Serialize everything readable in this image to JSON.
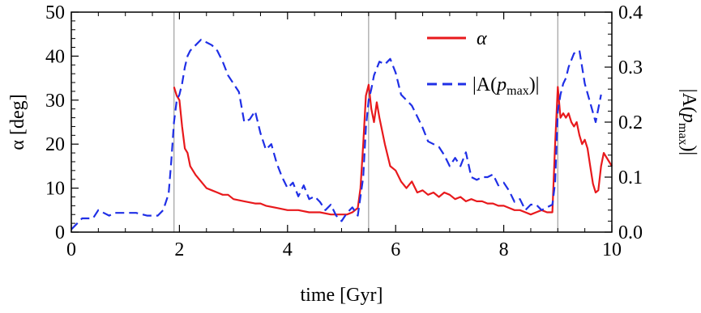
{
  "chart_data": {
    "type": "line",
    "xlabel": "time [Gyr]",
    "ylabel_left": "α [deg]",
    "ylabel_right": "|A(p_max)|",
    "xlim": [
      0,
      10
    ],
    "ylim_left": [
      0,
      50
    ],
    "ylim_right": [
      0,
      0.4
    ],
    "x_ticks": [
      "0",
      "2",
      "4",
      "6",
      "8",
      "10"
    ],
    "y_left_ticks": [
      "0",
      "10",
      "20",
      "30",
      "40",
      "50"
    ],
    "y_right_ticks": [
      "0.0",
      "0.1",
      "0.2",
      "0.3",
      "0.4"
    ],
    "vertical_lines": [
      1.9,
      5.5,
      9.0
    ],
    "grid": false,
    "legend_placement": "top-right",
    "legend": {
      "alpha_label": "α",
      "amp_label_prefix": "|A(",
      "amp_label_var": "p",
      "amp_label_sub": "max",
      "amp_label_suffix": ")|"
    },
    "right_axis_title": {
      "prefix": "|A(",
      "var": "p",
      "sub": "max",
      "suffix": ")|"
    },
    "colors": {
      "alpha": "#e8191c",
      "amp": "#1f2fe6",
      "vline": "#a0a0a0"
    },
    "series": [
      {
        "name": "α",
        "axis": "left",
        "style": "solid",
        "x": [
          1.9,
          1.95,
          2.0,
          2.05,
          2.1,
          2.15,
          2.2,
          2.3,
          2.4,
          2.5,
          2.6,
          2.7,
          2.8,
          2.9,
          3.0,
          3.2,
          3.4,
          3.5,
          3.6,
          3.8,
          4.0,
          4.2,
          4.4,
          4.6,
          4.8,
          4.9,
          5.0,
          5.1,
          5.2,
          5.3,
          5.35,
          5.4,
          5.45,
          5.5,
          5.55,
          5.6,
          5.65,
          5.7,
          5.8,
          5.9,
          6.0,
          6.1,
          6.2,
          6.3,
          6.4,
          6.5,
          6.6,
          6.7,
          6.8,
          6.9,
          7.0,
          7.1,
          7.2,
          7.3,
          7.4,
          7.5,
          7.6,
          7.7,
          7.8,
          7.9,
          8.0,
          8.1,
          8.2,
          8.3,
          8.4,
          8.5,
          8.6,
          8.7,
          8.8,
          8.9,
          8.95,
          9.0,
          9.05,
          9.1,
          9.15,
          9.2,
          9.25,
          9.3,
          9.35,
          9.4,
          9.45,
          9.5,
          9.55,
          9.6,
          9.65,
          9.7,
          9.75,
          9.8,
          9.85,
          9.9,
          9.95,
          10.0
        ],
        "y": [
          33,
          31,
          30,
          24,
          19,
          18,
          15,
          13,
          11.5,
          10,
          9.5,
          9,
          8.5,
          8.5,
          7.5,
          7,
          6.5,
          6.5,
          6,
          5.5,
          5,
          5,
          4.5,
          4.5,
          4,
          4,
          4,
          4,
          4.5,
          5.5,
          10,
          20,
          31,
          33.5,
          28,
          25,
          29.5,
          26,
          20,
          15,
          14,
          11.5,
          10,
          11.5,
          9,
          9.5,
          8.5,
          9,
          8,
          9,
          8.5,
          7.5,
          8,
          7,
          7.5,
          7,
          7,
          6.5,
          6.5,
          6,
          6,
          5.5,
          5,
          5,
          4.5,
          4,
          4.5,
          5,
          4.5,
          4.5,
          20,
          33,
          26,
          27,
          26,
          27,
          25,
          24,
          25,
          22,
          20,
          21,
          19,
          15,
          11,
          9,
          9.5,
          15,
          18,
          17,
          16,
          15
        ]
      },
      {
        "name": "|A(p_max)|",
        "axis": "right",
        "style": "dashed",
        "x": [
          0,
          0.1,
          0.2,
          0.3,
          0.4,
          0.5,
          0.6,
          0.7,
          0.8,
          0.9,
          1.0,
          1.2,
          1.4,
          1.6,
          1.7,
          1.8,
          1.85,
          1.9,
          1.95,
          2.0,
          2.05,
          2.1,
          2.15,
          2.2,
          2.3,
          2.4,
          2.5,
          2.6,
          2.7,
          2.8,
          2.9,
          3.0,
          3.1,
          3.2,
          3.3,
          3.4,
          3.5,
          3.6,
          3.7,
          3.8,
          3.9,
          4.0,
          4.1,
          4.2,
          4.3,
          4.4,
          4.5,
          4.6,
          4.7,
          4.8,
          4.9,
          5.0,
          5.1,
          5.2,
          5.3,
          5.4,
          5.45,
          5.5,
          5.55,
          5.6,
          5.7,
          5.8,
          5.9,
          6.0,
          6.1,
          6.2,
          6.3,
          6.4,
          6.5,
          6.6,
          6.7,
          6.8,
          6.9,
          7.0,
          7.1,
          7.2,
          7.3,
          7.4,
          7.5,
          7.6,
          7.7,
          7.8,
          7.9,
          8.0,
          8.1,
          8.2,
          8.3,
          8.4,
          8.5,
          8.6,
          8.7,
          8.8,
          8.9,
          8.95,
          9.0,
          9.05,
          9.1,
          9.15,
          9.2,
          9.3,
          9.4,
          9.5,
          9.6,
          9.7,
          9.8
        ],
        "y": [
          0.005,
          0.015,
          0.025,
          0.025,
          0.025,
          0.04,
          0.035,
          0.03,
          0.035,
          0.035,
          0.035,
          0.035,
          0.03,
          0.03,
          0.04,
          0.07,
          0.13,
          0.2,
          0.24,
          0.25,
          0.27,
          0.3,
          0.32,
          0.33,
          0.34,
          0.35,
          0.345,
          0.34,
          0.33,
          0.31,
          0.285,
          0.27,
          0.255,
          0.2,
          0.205,
          0.22,
          0.18,
          0.15,
          0.16,
          0.125,
          0.1,
          0.08,
          0.09,
          0.065,
          0.085,
          0.06,
          0.065,
          0.055,
          0.04,
          0.05,
          0.03,
          0.02,
          0.035,
          0.045,
          0.03,
          0.1,
          0.19,
          0.24,
          0.26,
          0.285,
          0.31,
          0.305,
          0.315,
          0.29,
          0.25,
          0.24,
          0.23,
          0.21,
          0.19,
          0.165,
          0.16,
          0.155,
          0.14,
          0.12,
          0.135,
          0.12,
          0.145,
          0.1,
          0.095,
          0.1,
          0.1,
          0.105,
          0.085,
          0.09,
          0.075,
          0.055,
          0.06,
          0.04,
          0.05,
          0.05,
          0.04,
          0.045,
          0.05,
          0.09,
          0.22,
          0.25,
          0.27,
          0.28,
          0.3,
          0.325,
          0.33,
          0.27,
          0.235,
          0.2,
          0.25
        ]
      }
    ]
  }
}
